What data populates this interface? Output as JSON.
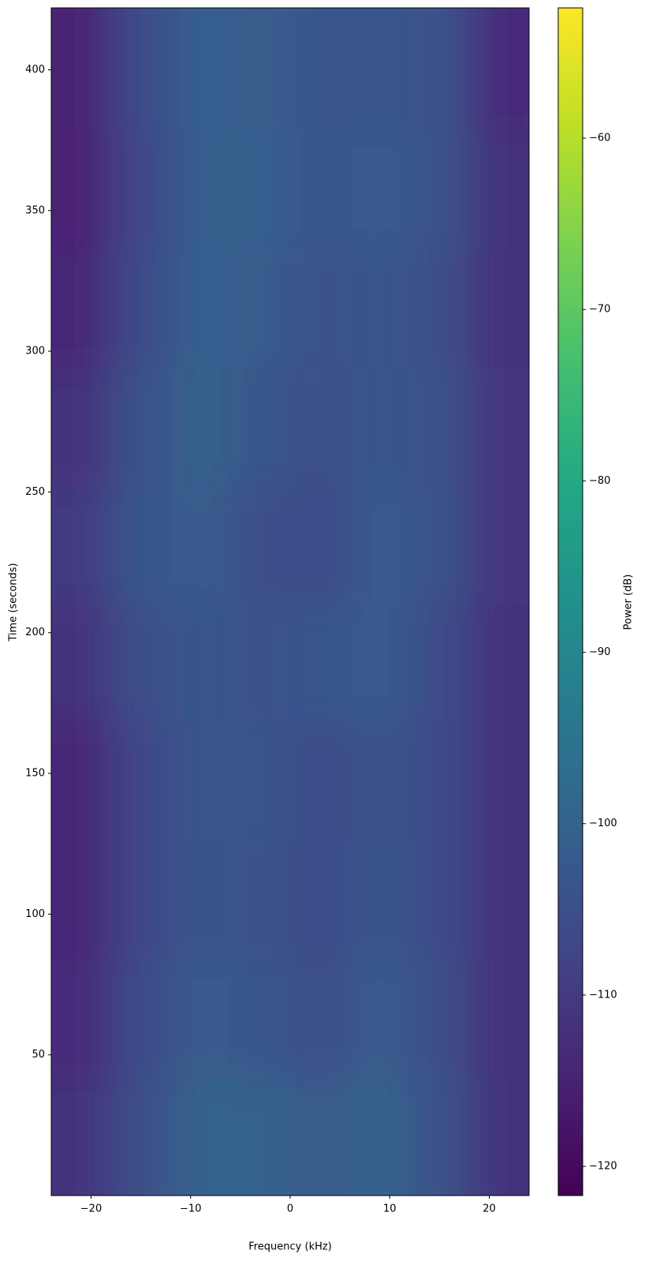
{
  "chart_data": {
    "type": "heatmap",
    "xlabel": "Frequency (kHz)",
    "ylabel": "Time (seconds)",
    "colorbar_label": "Power (dB)",
    "colormap": "viridis",
    "x_edges": [
      -24,
      -18,
      -12,
      -6,
      0,
      6,
      12,
      18,
      24
    ],
    "y_edges": [
      0,
      42,
      84,
      126,
      168,
      210,
      252,
      294,
      336,
      378,
      422
    ],
    "z": [
      [
        -112,
        -105,
        -100,
        -100,
        -102,
        -100,
        -104,
        -112
      ],
      [
        -113,
        -106,
        -102,
        -103,
        -105,
        -102,
        -105,
        -112
      ],
      [
        -114,
        -107,
        -103,
        -104,
        -106,
        -103,
        -106,
        -112
      ],
      [
        -114,
        -107,
        -103,
        -103,
        -106,
        -104,
        -106,
        -112
      ],
      [
        -112,
        -105,
        -103,
        -104,
        -103,
        -102,
        -106,
        -112
      ],
      [
        -110,
        -103,
        -102,
        -105,
        -106,
        -102,
        -104,
        -111
      ],
      [
        -112,
        -104,
        -100,
        -103,
        -105,
        -103,
        -104,
        -111
      ],
      [
        -114,
        -106,
        -101,
        -102,
        -104,
        -103,
        -105,
        -112
      ],
      [
        -115,
        -107,
        -101,
        -101,
        -103,
        -102,
        -104,
        -112
      ],
      [
        -115,
        -106,
        -101,
        -102,
        -103,
        -103,
        -104,
        -113
      ]
    ],
    "xlim": [
      -24,
      24
    ],
    "ylim": [
      0,
      422
    ],
    "xticks": [
      {
        "value": -20,
        "label": "−20"
      },
      {
        "value": -10,
        "label": "−10"
      },
      0,
      10,
      20
    ],
    "yticks": [
      50,
      100,
      150,
      200,
      250,
      300,
      350,
      400
    ],
    "clim": [
      -121.7,
      -52.4
    ],
    "cticks": [
      {
        "value": -120,
        "label": "−120"
      },
      {
        "value": -110,
        "label": "−110"
      },
      {
        "value": -100,
        "label": "−100"
      },
      {
        "value": -90,
        "label": "−90"
      },
      {
        "value": -80,
        "label": "−80"
      },
      {
        "value": -70,
        "label": "−70"
      },
      {
        "value": -60,
        "label": "−60"
      }
    ]
  }
}
